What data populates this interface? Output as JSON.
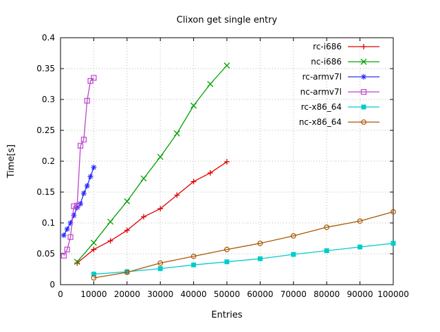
{
  "chart_data": {
    "type": "line",
    "title": "Clixon get single entry",
    "xlabel": "Entries",
    "ylabel": "Time[s]",
    "xlim": [
      0,
      100000
    ],
    "ylim": [
      0,
      0.4
    ],
    "grid": true,
    "legend_position": "top-right-inside",
    "xticks": [
      [
        0,
        "0"
      ],
      [
        10000,
        "10000"
      ],
      [
        20000,
        "20000"
      ],
      [
        30000,
        "30000"
      ],
      [
        40000,
        "40000"
      ],
      [
        50000,
        "50000"
      ],
      [
        60000,
        "60000"
      ],
      [
        70000,
        "70000"
      ],
      [
        80000,
        "80000"
      ],
      [
        90000,
        "90000"
      ],
      [
        100000,
        "100000"
      ]
    ],
    "yticks": [
      [
        0,
        "0"
      ],
      [
        0.05,
        "0.05"
      ],
      [
        0.1,
        "0.1"
      ],
      [
        0.15,
        "0.15"
      ],
      [
        0.2,
        "0.2"
      ],
      [
        0.25,
        "0.25"
      ],
      [
        0.3,
        "0.3"
      ],
      [
        0.35,
        "0.35"
      ],
      [
        0.4,
        "0.4"
      ]
    ],
    "series": [
      {
        "name": "rc-i686",
        "color": "#dd0000",
        "marker": "plus",
        "x": [
          5000,
          10000,
          15000,
          20000,
          25000,
          30000,
          35000,
          40000,
          45000,
          50000
        ],
        "y": [
          0.035,
          0.057,
          0.071,
          0.088,
          0.11,
          0.123,
          0.145,
          0.167,
          0.181,
          0.199
        ]
      },
      {
        "name": "nc-i686",
        "color": "#00a000",
        "marker": "cross",
        "x": [
          5000,
          10000,
          15000,
          20000,
          25000,
          30000,
          35000,
          40000,
          45000,
          50000
        ],
        "y": [
          0.037,
          0.068,
          0.102,
          0.135,
          0.172,
          0.207,
          0.245,
          0.29,
          0.325,
          0.355
        ]
      },
      {
        "name": "rc-armv7l",
        "color": "#2a2aff",
        "marker": "asterisk",
        "x": [
          1000,
          2000,
          3000,
          4000,
          5000,
          6000,
          7000,
          8000,
          9000,
          10000
        ],
        "y": [
          0.08,
          0.09,
          0.1,
          0.112,
          0.125,
          0.131,
          0.148,
          0.16,
          0.175,
          0.19
        ]
      },
      {
        "name": "nc-armv7l",
        "color": "#bb44cc",
        "marker": "square-open",
        "x": [
          1000,
          2000,
          3000,
          4000,
          5000,
          6000,
          7000,
          8000,
          9000,
          10000
        ],
        "y": [
          0.047,
          0.057,
          0.077,
          0.127,
          0.128,
          0.225,
          0.235,
          0.298,
          0.33,
          0.335
        ]
      },
      {
        "name": "rc-x86_64",
        "color": "#00cccc",
        "marker": "square-filled",
        "x": [
          10000,
          20000,
          30000,
          40000,
          50000,
          60000,
          70000,
          80000,
          90000,
          100000
        ],
        "y": [
          0.017,
          0.021,
          0.026,
          0.032,
          0.037,
          0.042,
          0.049,
          0.055,
          0.061,
          0.067
        ]
      },
      {
        "name": "nc-x86_64",
        "color": "#a85400",
        "marker": "circle-open",
        "x": [
          10000,
          20000,
          30000,
          40000,
          50000,
          60000,
          70000,
          80000,
          90000,
          100000
        ],
        "y": [
          0.011,
          0.02,
          0.035,
          0.046,
          0.057,
          0.067,
          0.079,
          0.093,
          0.103,
          0.118
        ]
      }
    ]
  }
}
